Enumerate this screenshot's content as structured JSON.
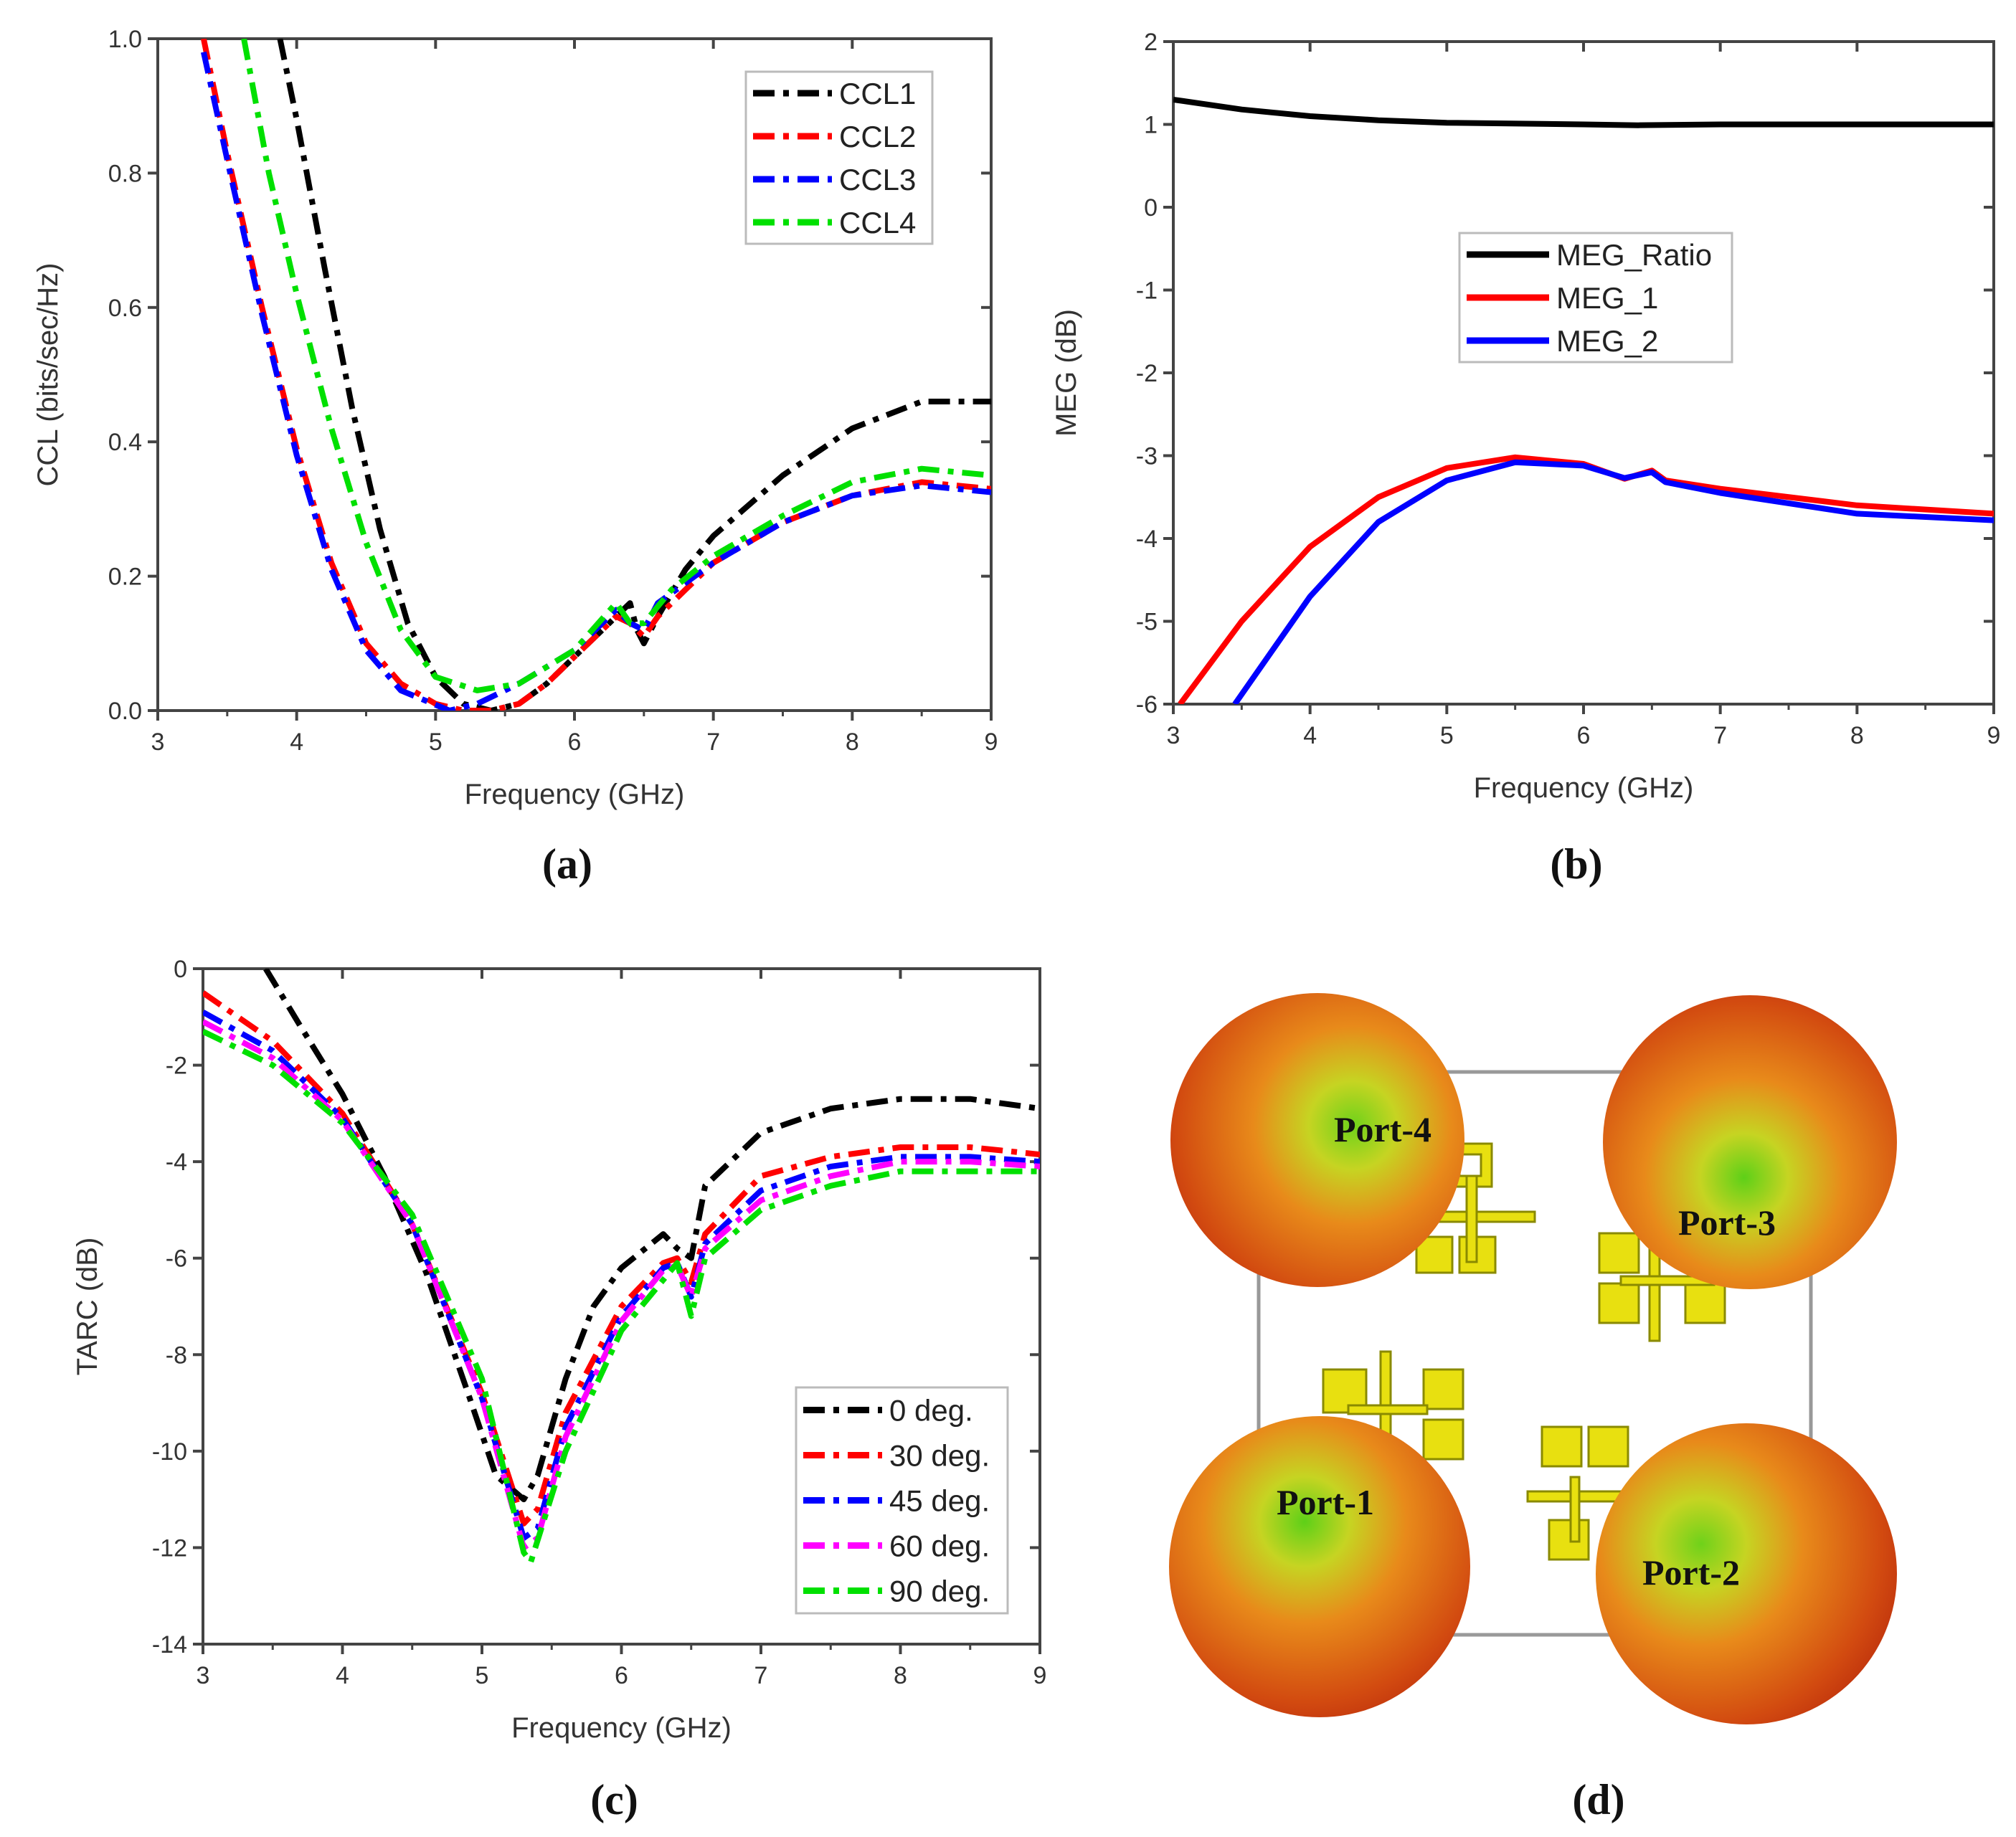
{
  "chart_data": [
    {
      "id": "a",
      "type": "line",
      "caption": "(a)",
      "xlabel": "Frequency (GHz)",
      "ylabel": "CCL (bits/sec/Hz)",
      "xlim": [
        3,
        9
      ],
      "ylim": [
        0,
        1
      ],
      "xticks": [
        "3",
        "4",
        "5",
        "6",
        "7",
        "8",
        "9"
      ],
      "yticks": [
        "0.0",
        "0.2",
        "0.4",
        "0.6",
        "0.8",
        "1.0"
      ],
      "legend_position": "top-right",
      "series": [
        {
          "name": "CCL1",
          "color": "#000000",
          "dash": "dashdot",
          "points": [
            [
              3.88,
              1.0
            ],
            [
              4.0,
              0.88
            ],
            [
              4.2,
              0.66
            ],
            [
              4.4,
              0.45
            ],
            [
              4.6,
              0.27
            ],
            [
              4.8,
              0.13
            ],
            [
              5.0,
              0.05
            ],
            [
              5.2,
              0.01
            ],
            [
              5.4,
              0.0
            ],
            [
              5.6,
              0.01
            ],
            [
              5.8,
              0.04
            ],
            [
              6.0,
              0.08
            ],
            [
              6.2,
              0.12
            ],
            [
              6.3,
              0.14
            ],
            [
              6.4,
              0.16
            ],
            [
              6.45,
              0.12
            ],
            [
              6.5,
              0.1
            ],
            [
              6.6,
              0.14
            ],
            [
              6.8,
              0.21
            ],
            [
              7.0,
              0.26
            ],
            [
              7.5,
              0.35
            ],
            [
              8.0,
              0.42
            ],
            [
              8.5,
              0.46
            ],
            [
              9.0,
              0.46
            ]
          ]
        },
        {
          "name": "CCL2",
          "color": "#ff0000",
          "dash": "dashdot",
          "points": [
            [
              3.33,
              1.0
            ],
            [
              3.5,
              0.83
            ],
            [
              3.75,
              0.6
            ],
            [
              4.0,
              0.39
            ],
            [
              4.25,
              0.22
            ],
            [
              4.5,
              0.1
            ],
            [
              4.75,
              0.04
            ],
            [
              5.0,
              0.01
            ],
            [
              5.2,
              0.0
            ],
            [
              5.4,
              0.0
            ],
            [
              5.6,
              0.01
            ],
            [
              5.8,
              0.04
            ],
            [
              6.0,
              0.08
            ],
            [
              6.3,
              0.14
            ],
            [
              6.4,
              0.13
            ],
            [
              6.5,
              0.11
            ],
            [
              6.6,
              0.14
            ],
            [
              6.8,
              0.18
            ],
            [
              7.0,
              0.22
            ],
            [
              7.5,
              0.28
            ],
            [
              8.0,
              0.32
            ],
            [
              8.5,
              0.34
            ],
            [
              9.0,
              0.33
            ]
          ]
        },
        {
          "name": "CCL3",
          "color": "#0000ff",
          "dash": "dashdot",
          "points": [
            [
              3.33,
              0.98
            ],
            [
              3.5,
              0.82
            ],
            [
              3.75,
              0.59
            ],
            [
              4.0,
              0.38
            ],
            [
              4.25,
              0.21
            ],
            [
              4.5,
              0.09
            ],
            [
              4.75,
              0.03
            ],
            [
              5.1,
              0.0
            ],
            [
              5.3,
              0.01
            ],
            [
              5.6,
              0.04
            ],
            [
              6.0,
              0.09
            ],
            [
              6.3,
              0.15
            ],
            [
              6.4,
              0.13
            ],
            [
              6.5,
              0.12
            ],
            [
              6.6,
              0.16
            ],
            [
              7.0,
              0.22
            ],
            [
              7.5,
              0.28
            ],
            [
              8.0,
              0.32
            ],
            [
              8.5,
              0.335
            ],
            [
              9.0,
              0.325
            ]
          ]
        },
        {
          "name": "CCL4",
          "color": "#00e000",
          "dash": "dashdot",
          "points": [
            [
              3.62,
              1.0
            ],
            [
              3.8,
              0.8
            ],
            [
              4.0,
              0.62
            ],
            [
              4.25,
              0.42
            ],
            [
              4.5,
              0.25
            ],
            [
              4.75,
              0.12
            ],
            [
              5.0,
              0.05
            ],
            [
              5.3,
              0.03
            ],
            [
              5.6,
              0.04
            ],
            [
              6.0,
              0.09
            ],
            [
              6.3,
              0.16
            ],
            [
              6.4,
              0.13
            ],
            [
              6.5,
              0.13
            ],
            [
              6.7,
              0.18
            ],
            [
              7.0,
              0.23
            ],
            [
              7.5,
              0.29
            ],
            [
              8.0,
              0.34
            ],
            [
              8.5,
              0.36
            ],
            [
              9.0,
              0.35
            ]
          ]
        }
      ]
    },
    {
      "id": "b",
      "type": "line",
      "caption": "(b)",
      "xlabel": "Frequency (GHz)",
      "ylabel": "MEG (dB)",
      "xlim": [
        3,
        9
      ],
      "ylim": [
        -6,
        2
      ],
      "xticks": [
        "3",
        "4",
        "5",
        "6",
        "7",
        "8",
        "9"
      ],
      "yticks": [
        "-6",
        "-5",
        "-4",
        "-3",
        "-2",
        "-1",
        "0",
        "1",
        "2"
      ],
      "legend_position": "center",
      "series": [
        {
          "name": "MEG_Ratio",
          "color": "#000000",
          "dash": "solid",
          "points": [
            [
              3.0,
              1.3
            ],
            [
              3.5,
              1.18
            ],
            [
              4.0,
              1.1
            ],
            [
              4.5,
              1.05
            ],
            [
              5.0,
              1.02
            ],
            [
              6.0,
              1.0
            ],
            [
              6.4,
              0.99
            ],
            [
              7.0,
              1.0
            ],
            [
              8.0,
              1.0
            ],
            [
              9.0,
              1.0
            ]
          ]
        },
        {
          "name": "MEG_1",
          "color": "#ff0000",
          "dash": "solid",
          "points": [
            [
              3.05,
              -6.0
            ],
            [
              3.5,
              -5.0
            ],
            [
              4.0,
              -4.1
            ],
            [
              4.5,
              -3.5
            ],
            [
              5.0,
              -3.15
            ],
            [
              5.5,
              -3.02
            ],
            [
              6.0,
              -3.1
            ],
            [
              6.3,
              -3.28
            ],
            [
              6.5,
              -3.18
            ],
            [
              6.6,
              -3.3
            ],
            [
              7.0,
              -3.4
            ],
            [
              8.0,
              -3.6
            ],
            [
              9.0,
              -3.7
            ]
          ]
        },
        {
          "name": "MEG_2",
          "color": "#0000ff",
          "dash": "solid",
          "points": [
            [
              3.45,
              -6.0
            ],
            [
              4.0,
              -4.7
            ],
            [
              4.5,
              -3.8
            ],
            [
              5.0,
              -3.3
            ],
            [
              5.5,
              -3.08
            ],
            [
              6.0,
              -3.12
            ],
            [
              6.3,
              -3.27
            ],
            [
              6.5,
              -3.2
            ],
            [
              6.6,
              -3.32
            ],
            [
              7.0,
              -3.45
            ],
            [
              8.0,
              -3.7
            ],
            [
              9.0,
              -3.78
            ]
          ]
        }
      ]
    },
    {
      "id": "c",
      "type": "line",
      "caption": "(c)",
      "xlabel": "Frequency (GHz)",
      "ylabel": "TARC (dB)",
      "xlim": [
        3,
        9
      ],
      "ylim": [
        -14,
        0
      ],
      "xticks": [
        "3",
        "4",
        "5",
        "6",
        "7",
        "8",
        "9"
      ],
      "yticks": [
        "-14",
        "-12",
        "-10",
        "-8",
        "-6",
        "-4",
        "-2",
        "0"
      ],
      "legend_position": "bottom-right",
      "series": [
        {
          "name": "0 deg.",
          "color": "#000000",
          "dash": "dashdot",
          "points": [
            [
              3.45,
              0
            ],
            [
              3.7,
              -1.2
            ],
            [
              4.0,
              -2.6
            ],
            [
              4.3,
              -4.3
            ],
            [
              4.6,
              -6.3
            ],
            [
              4.9,
              -8.8
            ],
            [
              5.1,
              -10.5
            ],
            [
              5.3,
              -11.0
            ],
            [
              5.4,
              -10.5
            ],
            [
              5.6,
              -8.5
            ],
            [
              5.8,
              -7.0
            ],
            [
              6.0,
              -6.2
            ],
            [
              6.3,
              -5.5
            ],
            [
              6.4,
              -5.8
            ],
            [
              6.5,
              -6.0
            ],
            [
              6.6,
              -4.5
            ],
            [
              7.0,
              -3.4
            ],
            [
              7.5,
              -2.9
            ],
            [
              8.0,
              -2.7
            ],
            [
              8.5,
              -2.7
            ],
            [
              9.0,
              -2.9
            ]
          ]
        },
        {
          "name": "30 deg.",
          "color": "#ff0000",
          "dash": "dashdot",
          "points": [
            [
              3.0,
              -0.5
            ],
            [
              3.5,
              -1.5
            ],
            [
              4.0,
              -3.0
            ],
            [
              4.5,
              -5.3
            ],
            [
              5.0,
              -8.8
            ],
            [
              5.3,
              -11.5
            ],
            [
              5.4,
              -11.2
            ],
            [
              5.6,
              -9.2
            ],
            [
              6.0,
              -7.0
            ],
            [
              6.3,
              -6.1
            ],
            [
              6.4,
              -6.0
            ],
            [
              6.5,
              -6.5
            ],
            [
              6.6,
              -5.5
            ],
            [
              7.0,
              -4.3
            ],
            [
              7.5,
              -3.9
            ],
            [
              8.0,
              -3.7
            ],
            [
              8.5,
              -3.7
            ],
            [
              9.0,
              -3.85
            ]
          ]
        },
        {
          "name": "45 deg.",
          "color": "#0000ff",
          "dash": "dashdot",
          "points": [
            [
              3.0,
              -0.9
            ],
            [
              3.5,
              -1.7
            ],
            [
              4.0,
              -3.1
            ],
            [
              4.5,
              -5.3
            ],
            [
              5.0,
              -8.9
            ],
            [
              5.3,
              -11.8
            ],
            [
              5.4,
              -11.6
            ],
            [
              5.6,
              -9.5
            ],
            [
              6.0,
              -7.2
            ],
            [
              6.3,
              -6.2
            ],
            [
              6.4,
              -6.1
            ],
            [
              6.5,
              -6.8
            ],
            [
              6.6,
              -5.7
            ],
            [
              7.0,
              -4.6
            ],
            [
              7.5,
              -4.1
            ],
            [
              8.0,
              -3.9
            ],
            [
              8.5,
              -3.9
            ],
            [
              9.0,
              -4.0
            ]
          ]
        },
        {
          "name": "60 deg.",
          "color": "#ff00ff",
          "dash": "dashdot",
          "points": [
            [
              3.0,
              -1.1
            ],
            [
              3.5,
              -1.85
            ],
            [
              4.0,
              -3.15
            ],
            [
              4.5,
              -5.3
            ],
            [
              5.0,
              -8.9
            ],
            [
              5.3,
              -12.0
            ],
            [
              5.4,
              -11.8
            ],
            [
              5.6,
              -9.7
            ],
            [
              6.0,
              -7.3
            ],
            [
              6.3,
              -6.25
            ],
            [
              6.4,
              -6.15
            ],
            [
              6.5,
              -6.8
            ],
            [
              6.6,
              -5.8
            ],
            [
              7.0,
              -4.8
            ],
            [
              7.5,
              -4.3
            ],
            [
              8.0,
              -4.0
            ],
            [
              8.5,
              -4.0
            ],
            [
              9.0,
              -4.1
            ]
          ]
        },
        {
          "name": "90 deg.",
          "color": "#00e000",
          "dash": "dashdot",
          "points": [
            [
              3.0,
              -1.3
            ],
            [
              3.5,
              -2.0
            ],
            [
              4.0,
              -3.2
            ],
            [
              4.5,
              -5.1
            ],
            [
              5.0,
              -8.5
            ],
            [
              5.3,
              -12.1
            ],
            [
              5.35,
              -12.3
            ],
            [
              5.6,
              -10.0
            ],
            [
              6.0,
              -7.5
            ],
            [
              6.4,
              -6.1
            ],
            [
              6.5,
              -7.2
            ],
            [
              6.6,
              -6.0
            ],
            [
              7.0,
              -5.0
            ],
            [
              7.5,
              -4.5
            ],
            [
              8.0,
              -4.2
            ],
            [
              9.0,
              -4.2
            ]
          ]
        }
      ]
    }
  ],
  "panel_d": {
    "caption": "(d)",
    "ports": [
      "Port-4",
      "Port-3",
      "Port-1",
      "Port-2"
    ]
  }
}
